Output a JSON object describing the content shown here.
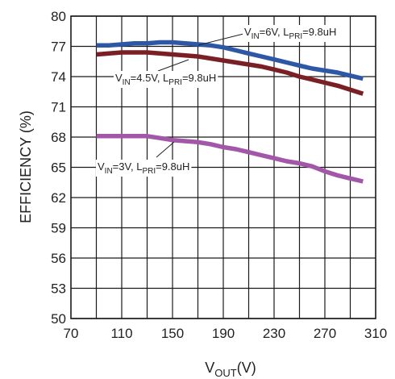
{
  "chart_data": {
    "type": "line",
    "xlabel": {
      "main": "V",
      "sub": "OUT",
      "tail": "(V)"
    },
    "ylabel": "EFFICIENCY (%)",
    "xlim": [
      70,
      310
    ],
    "ylim": [
      50,
      80
    ],
    "xticks": [
      70,
      110,
      150,
      190,
      230,
      270,
      310
    ],
    "yticks": [
      50,
      53,
      56,
      59,
      62,
      65,
      68,
      71,
      74,
      77,
      80
    ],
    "x_minor_step": 20,
    "grid": true,
    "series": [
      {
        "color": "#2e57a6",
        "label_parts": [
          {
            "t": "V",
            "sub": false
          },
          {
            "t": "IN",
            "sub": true
          },
          {
            "t": "=6V, L",
            "sub": false
          },
          {
            "t": "PRI",
            "sub": true
          },
          {
            "t": "=9.8uH",
            "sub": false
          }
        ],
        "x": [
          90,
          100,
          110,
          120,
          130,
          140,
          150,
          160,
          170,
          180,
          190,
          200,
          210,
          220,
          230,
          240,
          250,
          260,
          270,
          280,
          290,
          300
        ],
        "y": [
          77.1,
          77.1,
          77.2,
          77.3,
          77.3,
          77.4,
          77.4,
          77.3,
          77.2,
          77.1,
          76.9,
          76.6,
          76.3,
          76.0,
          75.7,
          75.4,
          75.1,
          74.8,
          74.6,
          74.4,
          74.1,
          73.8
        ]
      },
      {
        "color": "#7a1f24",
        "label_parts": [
          {
            "t": "V",
            "sub": false
          },
          {
            "t": "IN",
            "sub": true
          },
          {
            "t": "=4.5V, L",
            "sub": false
          },
          {
            "t": "PRI",
            "sub": true
          },
          {
            "t": "=9.8uH",
            "sub": false
          }
        ],
        "x": [
          90,
          100,
          110,
          120,
          130,
          140,
          150,
          160,
          170,
          180,
          190,
          200,
          210,
          220,
          230,
          240,
          250,
          260,
          270,
          280,
          290,
          300
        ],
        "y": [
          76.2,
          76.3,
          76.4,
          76.4,
          76.4,
          76.3,
          76.2,
          76.1,
          76.0,
          75.8,
          75.6,
          75.4,
          75.2,
          75.0,
          74.7,
          74.4,
          74.0,
          73.7,
          73.4,
          73.1,
          72.7,
          72.3
        ]
      },
      {
        "color": "#a257a8",
        "label_parts": [
          {
            "t": "V",
            "sub": false
          },
          {
            "t": "IN",
            "sub": true
          },
          {
            "t": "=3V, L",
            "sub": false
          },
          {
            "t": "PRI",
            "sub": true
          },
          {
            "t": "=9.8uH",
            "sub": false
          }
        ],
        "x": [
          90,
          100,
          110,
          120,
          130,
          140,
          150,
          160,
          170,
          180,
          190,
          200,
          210,
          220,
          230,
          240,
          250,
          260,
          270,
          280,
          290,
          300
        ],
        "y": [
          68.1,
          68.1,
          68.1,
          68.1,
          68.1,
          67.9,
          67.7,
          67.6,
          67.5,
          67.3,
          67.0,
          66.8,
          66.5,
          66.2,
          65.9,
          65.6,
          65.4,
          65.1,
          64.6,
          64.2,
          63.9,
          63.6
        ]
      }
    ]
  }
}
